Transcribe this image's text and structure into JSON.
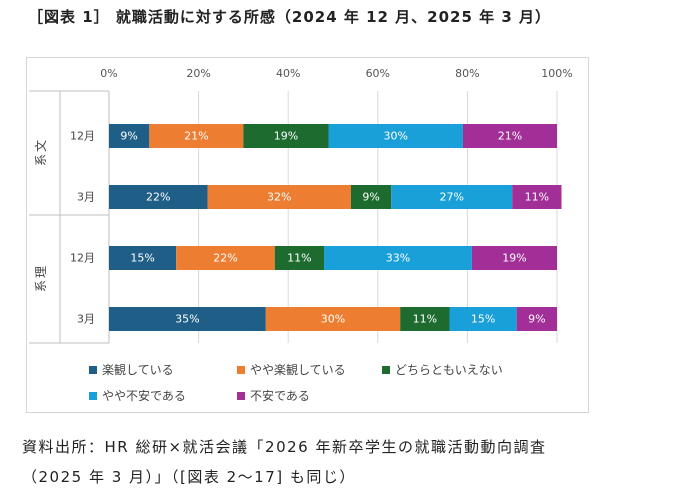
{
  "figure": {
    "title": "［図表 1］ 就職活動に対する所感（2024 年 12 月、2025 年 3 月）",
    "source_line1": "資料出所：HR 総研×就活会議「2026 年新卒学生の就職活動動向調査",
    "source_line2": "（2025 年 3 月）」（[図表 2～17] も同じ）"
  },
  "chart_data": {
    "type": "bar",
    "orientation": "horizontal",
    "stacked": true,
    "percent_stacked": true,
    "x_ticks": [
      "0%",
      "20%",
      "40%",
      "60%",
      "80%",
      "100%"
    ],
    "xlim": [
      0,
      100
    ],
    "groups": [
      {
        "label": "文系",
        "rows": [
          0,
          1
        ]
      },
      {
        "label": "理系",
        "rows": [
          2,
          3
        ]
      }
    ],
    "categories": [
      "12月",
      "3月",
      "12月",
      "3月"
    ],
    "series": [
      {
        "name": "楽観している",
        "color": "#1f5f87",
        "values": [
          9,
          22,
          15,
          35
        ]
      },
      {
        "name": "やや楽観している",
        "color": "#ed7d31",
        "values": [
          21,
          32,
          22,
          30
        ]
      },
      {
        "name": "どちらともいえない",
        "color": "#1e6b30",
        "values": [
          19,
          9,
          11,
          11
        ]
      },
      {
        "name": "やや不安である",
        "color": "#1aa0d8",
        "values": [
          30,
          27,
          33,
          15
        ]
      },
      {
        "name": "不安である",
        "color": "#a12f97",
        "values": [
          21,
          11,
          19,
          9
        ]
      }
    ],
    "value_labels": true,
    "grid": true,
    "legend_position": "bottom"
  }
}
